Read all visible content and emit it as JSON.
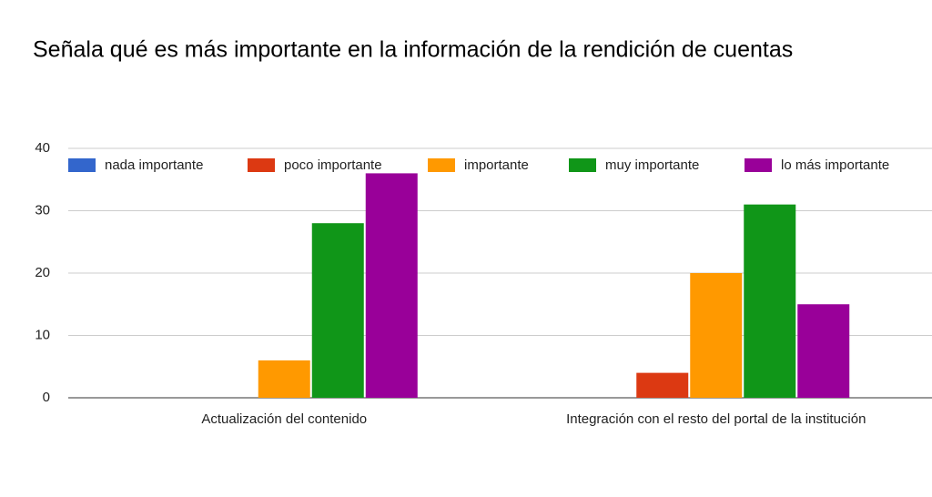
{
  "chart_data": {
    "type": "bar",
    "title": "Señala qué es más importante en la información de la rendición de cuentas",
    "categories": [
      "Actualización del contenido",
      "Integración con el resto del portal de la institución"
    ],
    "series": [
      {
        "name": "nada importante",
        "color": "#3366cc",
        "values": [
          0,
          0
        ]
      },
      {
        "name": "poco importante",
        "color": "#dc3912",
        "values": [
          0,
          4
        ]
      },
      {
        "name": "importante",
        "color": "#ff9900",
        "values": [
          6,
          20
        ]
      },
      {
        "name": "muy importante",
        "color": "#109618",
        "values": [
          28,
          31
        ]
      },
      {
        "name": "lo más importante",
        "color": "#990099",
        "values": [
          36,
          15
        ]
      }
    ],
    "ylim": [
      0,
      40
    ],
    "yticks": [
      0,
      10,
      20,
      30,
      40
    ],
    "grid": true,
    "legend": "top"
  }
}
